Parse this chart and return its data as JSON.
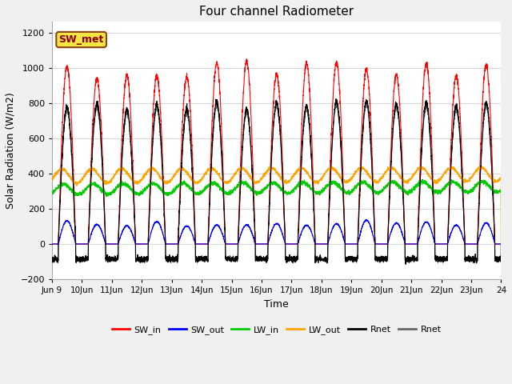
{
  "title": "Four channel Radiometer",
  "xlabel": "Time",
  "ylabel": "Solar Radiation (W/m2)",
  "ylim": [
    -200,
    1260
  ],
  "yticks": [
    -200,
    0,
    200,
    400,
    600,
    800,
    1000,
    1200
  ],
  "n_days": 15,
  "background_color": "#f0f0f0",
  "plot_bg_color": "#ffffff",
  "grid_color": "#d8d8d8",
  "annotation_text": "SW_met",
  "annotation_bg": "#f5e642",
  "annotation_border": "#8b4513",
  "sw_in_color": "#ff0000",
  "sw_out_color": "#0000ff",
  "lw_in_color": "#00cc00",
  "lw_out_color": "#ffa500",
  "rnet_color": "#000000",
  "rnet2_color": "#666666"
}
